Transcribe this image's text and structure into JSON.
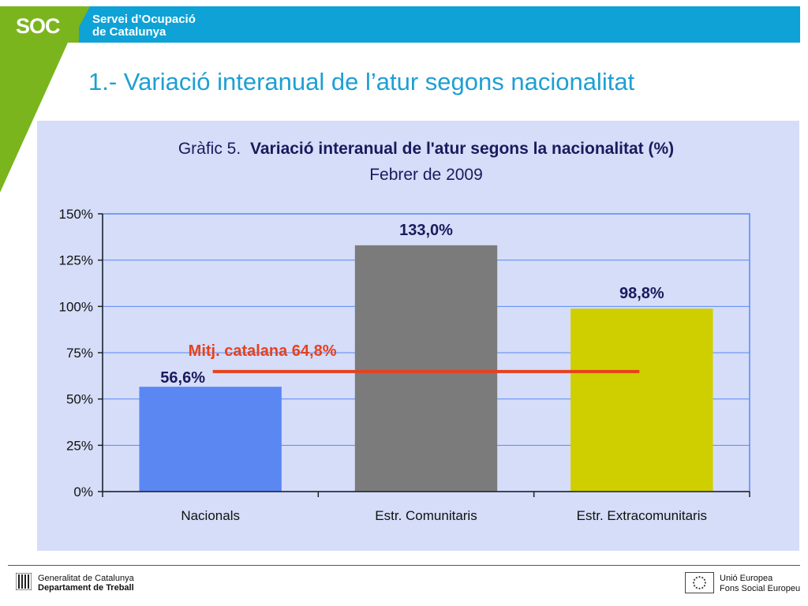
{
  "header": {
    "logo": "SOC",
    "org_line1": "Servei d’Ocupació",
    "org_line2": "de Catalunya"
  },
  "slide_title": "1.- Variació interanual de l’atur segons nacionalitat",
  "chart_data": {
    "type": "bar",
    "title_prefix": "Gràfic 5.",
    "title_bold": "Variació interanual de l'atur segons la nacionalitat (%)",
    "subtitle": "Febrer de 2009",
    "categories": [
      "Nacionals",
      "Estr. Comunitaris",
      "Estr. Extracomunitaris"
    ],
    "values": [
      56.6,
      133.0,
      98.8
    ],
    "data_labels": [
      "56,6%",
      "133,0%",
      "98,8%"
    ],
    "bar_colors": [
      "#5b87f3",
      "#7b7b7b",
      "#cfcf00"
    ],
    "ylim": [
      0,
      150
    ],
    "yticks": [
      0,
      25,
      50,
      75,
      100,
      125,
      150
    ],
    "ytick_labels": [
      "0%",
      "25%",
      "50%",
      "75%",
      "100%",
      "125%",
      "150%"
    ],
    "grid": true,
    "reference_line": {
      "label": "Mitj. catalana 64,8%",
      "value": 64.8,
      "color": "#e8401c"
    }
  },
  "footer": {
    "left_line1": "Generalitat de Catalunya",
    "left_line2": "Departament de Treball",
    "right_line1": "Unió Europea",
    "right_line2": "Fons Social Europeu"
  }
}
